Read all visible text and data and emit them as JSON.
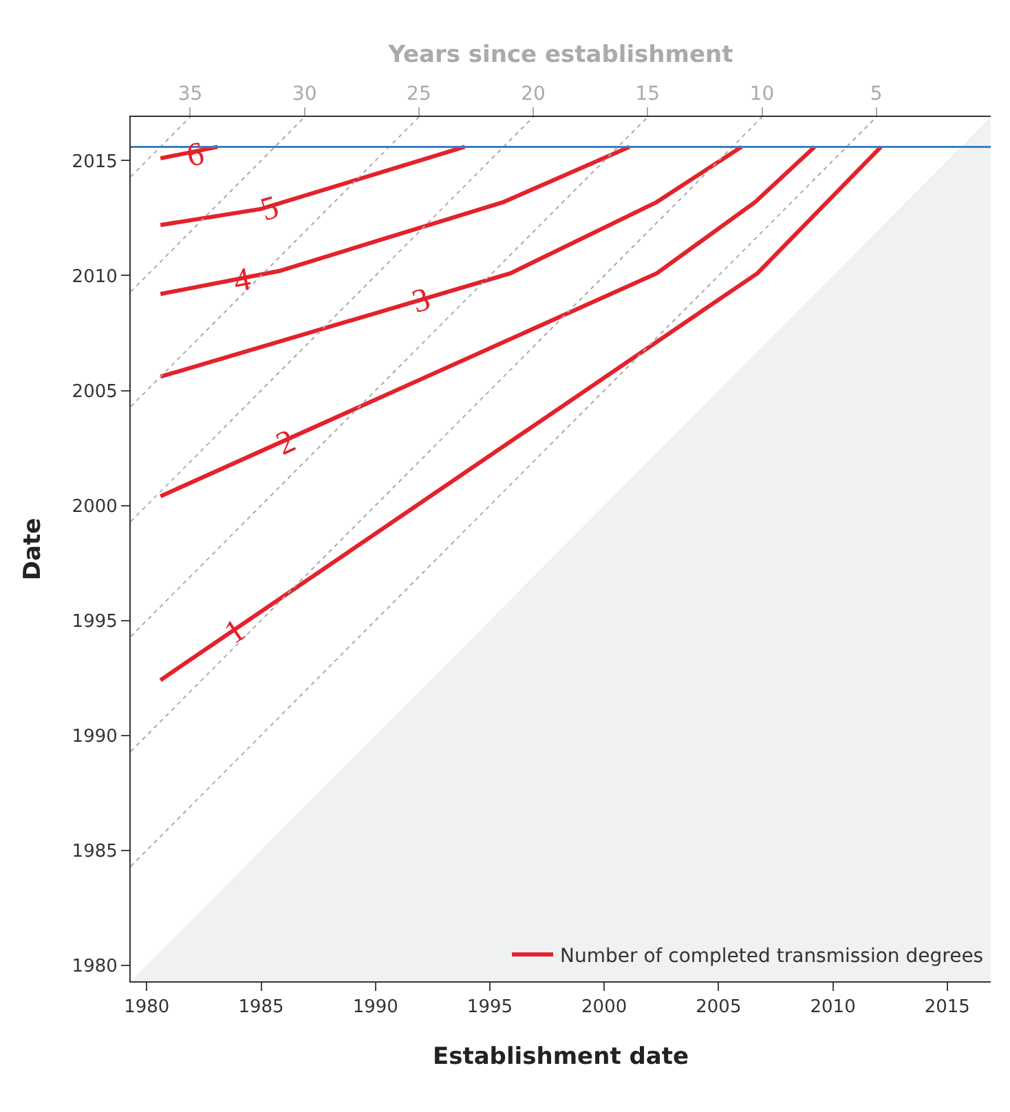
{
  "chart_data": {
    "type": "line",
    "xlabel": "Establishment date",
    "ylabel": "Date",
    "x2label": "Years since establishment",
    "xlim": [
      1979.3,
      2016.9
    ],
    "xticks": [
      1980,
      1985,
      1990,
      1995,
      2000,
      2005,
      2010,
      2015
    ],
    "ylim": [
      1979.3,
      2016.9
    ],
    "yticks": [
      1980,
      1985,
      1990,
      1995,
      2000,
      2005,
      2010,
      2015
    ],
    "x2lim": [
      37.6,
      0
    ],
    "x2ticks": [
      35,
      30,
      25,
      20,
      15,
      10,
      5
    ],
    "legend": "bottom right",
    "series": [
      {
        "type": "area",
        "color": "#f0f1f3",
        "x": [
          1979.3,
          2016.9
        ],
        "values": [
          1979.3,
          2016.9
        ]
      },
      {
        "name": "Number of completed transmission degrees",
        "color": "#e3222b",
        "x": [
          1980.6,
          2006.7,
          2012.1
        ],
        "values": [
          1992.4,
          2010.1,
          2015.6
        ]
      },
      {
        "color": "#e3222b",
        "x": [
          1980.6,
          2002.3,
          2006.6,
          2009.2
        ],
        "values": [
          2000.4,
          2010.1,
          2013.2,
          2015.6
        ]
      },
      {
        "color": "#e3222b",
        "x": [
          1980.6,
          1995.9,
          2002.3,
          2006.0
        ],
        "values": [
          2005.6,
          2010.1,
          2013.2,
          2015.6
        ]
      },
      {
        "color": "#e3222b",
        "x": [
          1980.6,
          1985.8,
          1995.6,
          2001.1
        ],
        "values": [
          2009.2,
          2010.2,
          2013.2,
          2015.6
        ]
      },
      {
        "color": "#e3222b",
        "x": [
          1980.6,
          1985.0,
          1993.9
        ],
        "values": [
          2012.2,
          2012.9,
          2015.6
        ]
      },
      {
        "color": "#e3222b",
        "x": [
          1980.6,
          1983.1
        ],
        "values": [
          2015.1,
          2015.6
        ]
      },
      {
        "color": "#aaaaaa",
        "line_style": "dotted",
        "x": [
          1979.3,
          1981.9
        ],
        "values": [
          2014.3,
          2016.9
        ]
      },
      {
        "color": "#aaaaaa",
        "line_style": "dotted",
        "x": [
          1979.3,
          1986.9
        ],
        "values": [
          2009.3,
          2016.9
        ]
      },
      {
        "color": "#aaaaaa",
        "line_style": "dotted",
        "x": [
          1979.3,
          1991.9
        ],
        "values": [
          2004.3,
          2016.9
        ]
      },
      {
        "color": "#aaaaaa",
        "line_style": "dotted",
        "x": [
          1979.3,
          1996.9
        ],
        "values": [
          1999.3,
          2016.9
        ]
      },
      {
        "color": "#aaaaaa",
        "line_style": "dotted",
        "x": [
          1979.3,
          2001.9
        ],
        "values": [
          1994.3,
          2016.9
        ]
      },
      {
        "color": "#aaaaaa",
        "line_style": "dotted",
        "x": [
          1979.3,
          2006.9
        ],
        "values": [
          1989.3,
          2016.9
        ]
      },
      {
        "color": "#aaaaaa",
        "line_style": "dotted",
        "x": [
          1979.3,
          2011.9
        ],
        "values": [
          1984.3,
          2016.9
        ]
      }
    ],
    "ref_lines": [
      {
        "axis": "y",
        "value": 2015.6,
        "color": "#3a7fc1"
      }
    ],
    "annotations": [
      {
        "text": "1",
        "x": 1983.9,
        "y": 1994.5
      },
      {
        "text": "2",
        "x": 1986.1,
        "y": 2002.7
      },
      {
        "text": "3",
        "x": 1992.0,
        "y": 2008.9
      },
      {
        "text": "4",
        "x": 1984.2,
        "y": 2009.8
      },
      {
        "text": "5",
        "x": 1985.4,
        "y": 2012.9
      },
      {
        "text": "6",
        "x": 1982.1,
        "y": 2015.25
      }
    ]
  }
}
